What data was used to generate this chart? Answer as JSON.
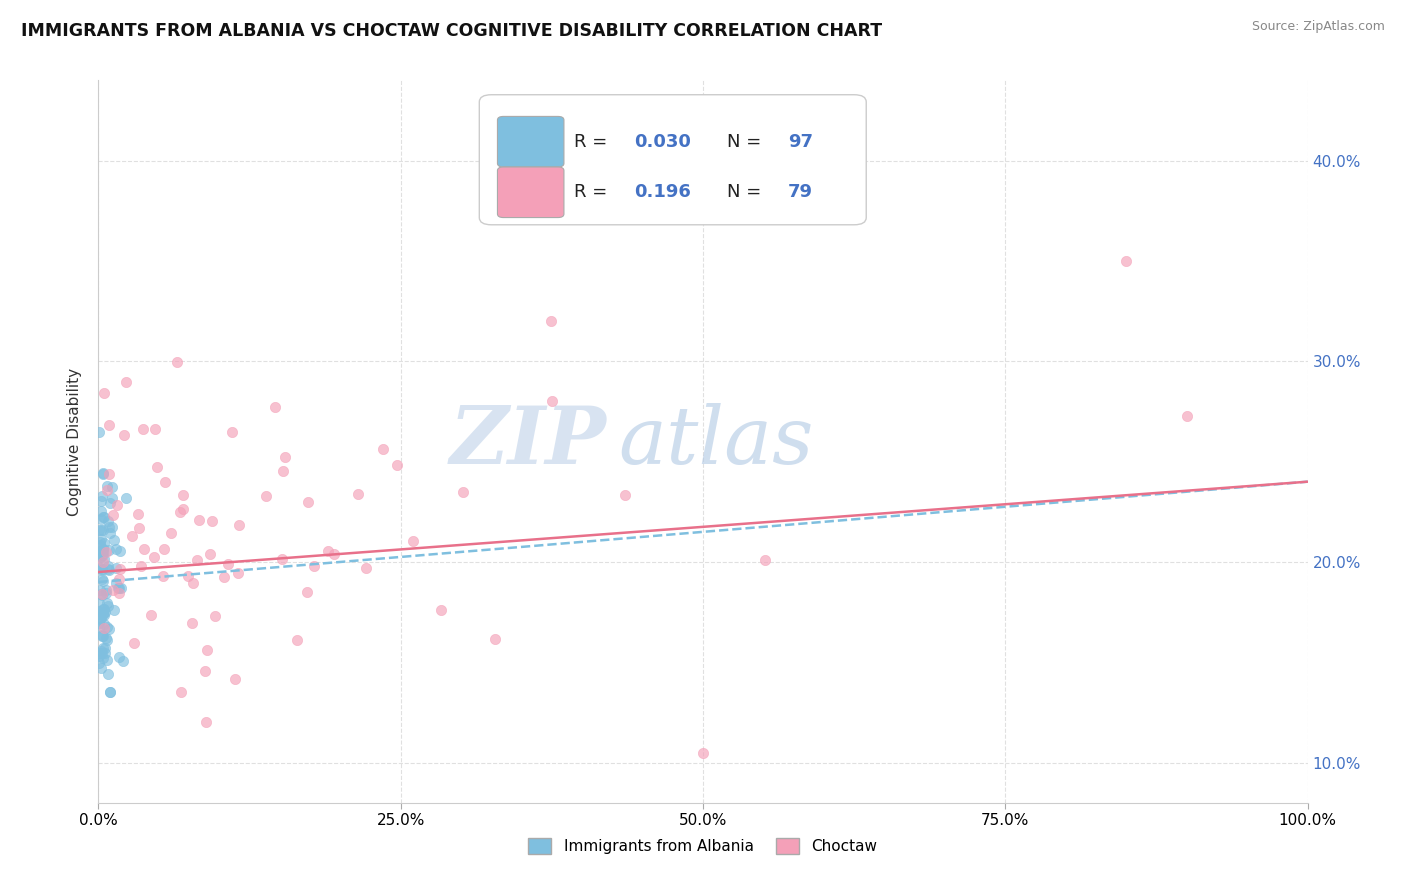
{
  "title": "IMMIGRANTS FROM ALBANIA VS CHOCTAW COGNITIVE DISABILITY CORRELATION CHART",
  "source": "Source: ZipAtlas.com",
  "ylabel": "Cognitive Disability",
  "legend_label_1": "Immigrants from Albania",
  "legend_label_2": "Choctaw",
  "R1": 0.03,
  "N1": 97,
  "R2": 0.196,
  "N2": 79,
  "color1": "#7fbfdf",
  "color2": "#f4a0b8",
  "trendline1_color": "#7fbfdf",
  "trendline2_color": "#e8708a",
  "xlim": [
    0,
    100
  ],
  "ylim": [
    8,
    44
  ],
  "yticks": [
    10,
    20,
    30,
    40
  ],
  "ytick_labels": [
    "10.0%",
    "20.0%",
    "30.0%",
    "40.0%"
  ],
  "xticks": [
    0,
    25,
    50,
    75,
    100
  ],
  "xtick_labels": [
    "0.0%",
    "25.0%",
    "50.0%",
    "75.0%",
    "100.0%"
  ],
  "background_color": "#ffffff",
  "grid_color": "#e0e0e0",
  "watermark_text": "ZIP",
  "watermark_text2": "atlas",
  "watermark_color1": "#c5d8ee",
  "watermark_color2": "#b8cfe8",
  "legend_blue": "#4472c4",
  "legend_text": "#222222"
}
